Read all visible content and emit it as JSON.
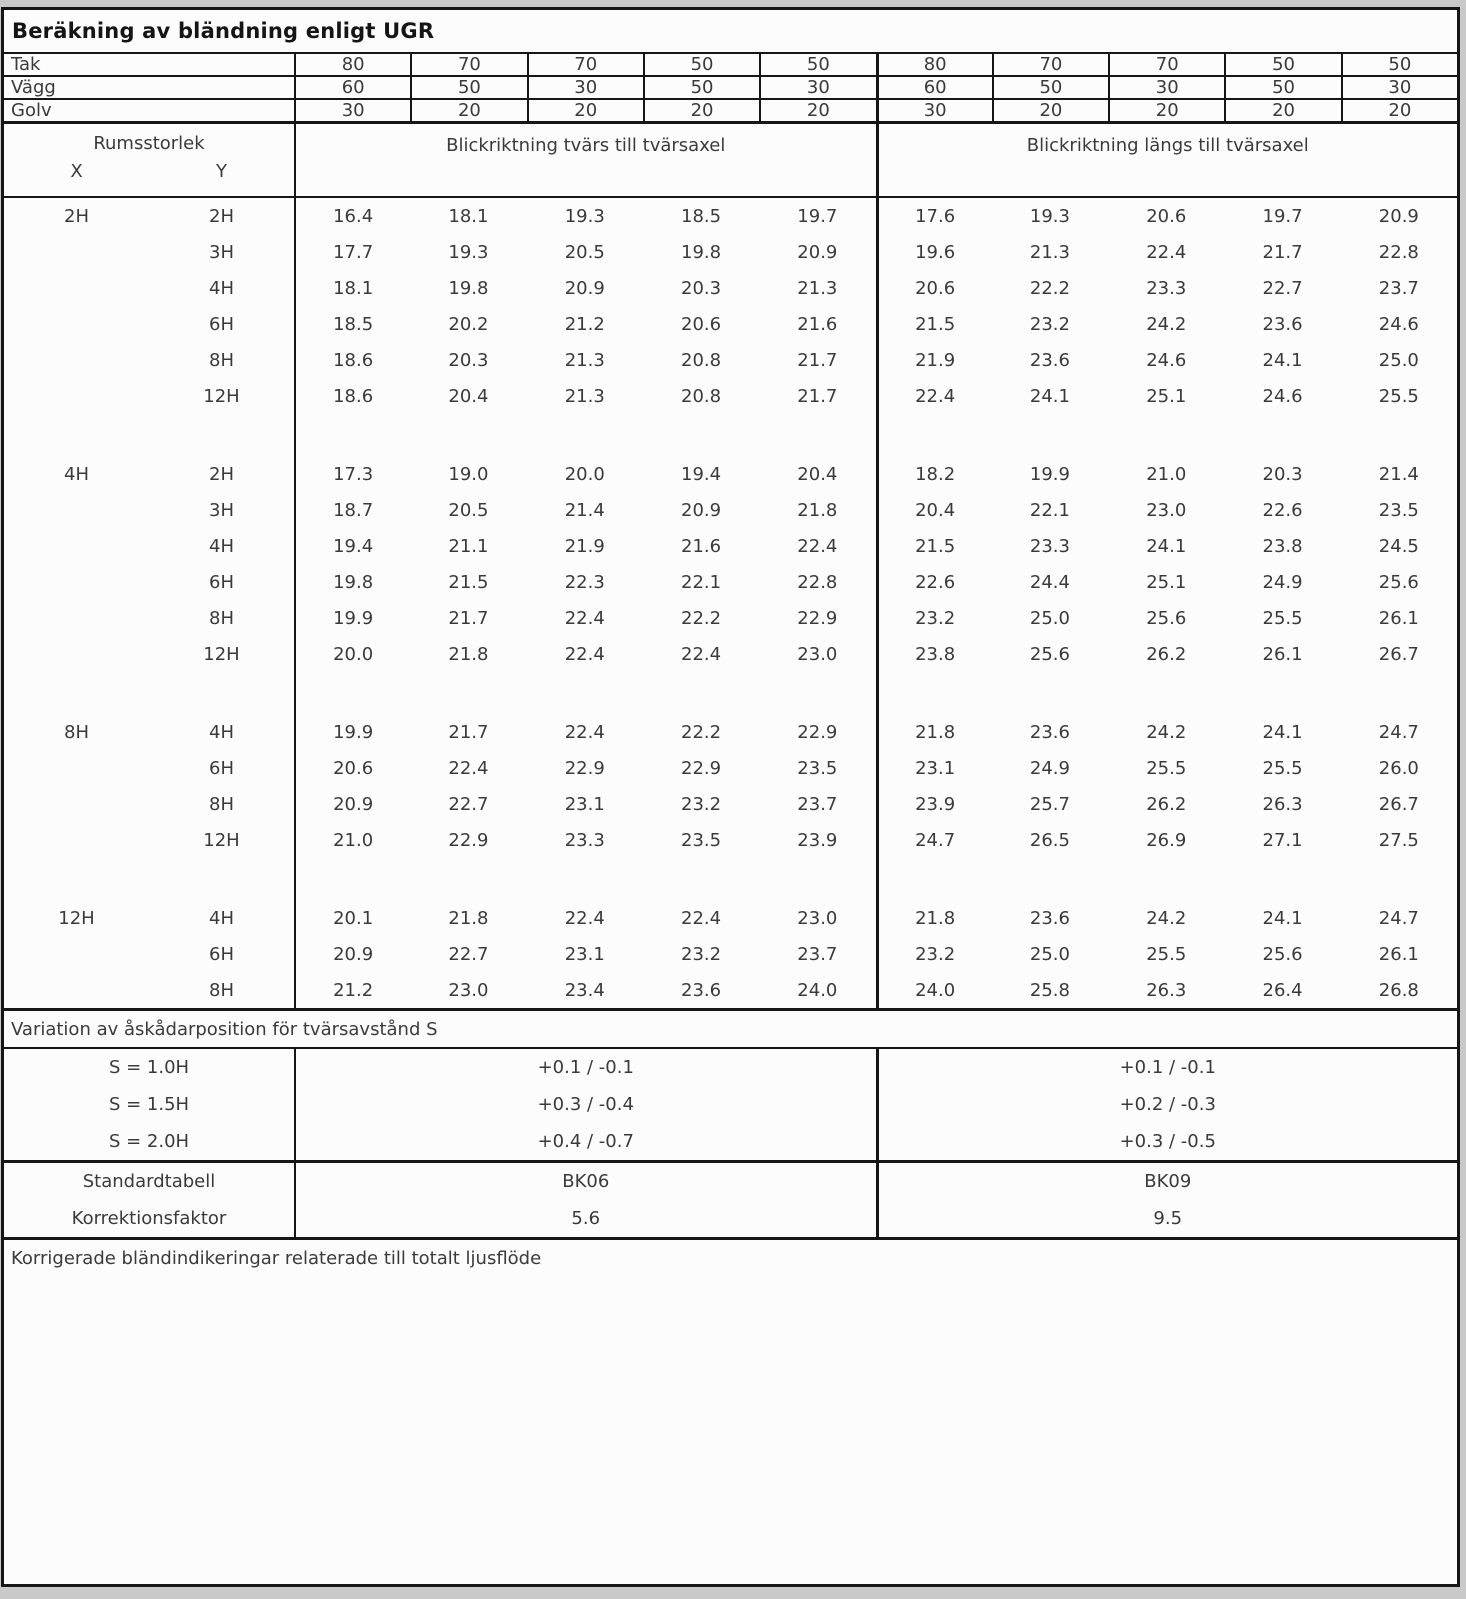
{
  "title": "Beräkning av bländning enligt UGR",
  "reflectance": {
    "rows": [
      {
        "label": "Tak",
        "values": [
          "80",
          "70",
          "70",
          "50",
          "50",
          "80",
          "70",
          "70",
          "50",
          "50"
        ]
      },
      {
        "label": "Vägg",
        "values": [
          "60",
          "50",
          "30",
          "50",
          "30",
          "60",
          "50",
          "30",
          "50",
          "30"
        ]
      },
      {
        "label": "Golv",
        "values": [
          "30",
          "20",
          "20",
          "20",
          "20",
          "30",
          "20",
          "20",
          "20",
          "20"
        ]
      }
    ]
  },
  "header": {
    "room_size_label": "Rumsstorlek",
    "x_label": "X",
    "y_label": "Y",
    "left_heading": "Blickriktning tvärs till tvärsaxel",
    "right_heading": "Blickriktning längs till tvärsaxel"
  },
  "ugr_table": {
    "blocks": [
      {
        "x": "2H",
        "rows": [
          {
            "y": "2H",
            "tvars": [
              "16.4",
              "18.1",
              "19.3",
              "18.5",
              "19.7"
            ],
            "langs": [
              "17.6",
              "19.3",
              "20.6",
              "19.7",
              "20.9"
            ]
          },
          {
            "y": "3H",
            "tvars": [
              "17.7",
              "19.3",
              "20.5",
              "19.8",
              "20.9"
            ],
            "langs": [
              "19.6",
              "21.3",
              "22.4",
              "21.7",
              "22.8"
            ]
          },
          {
            "y": "4H",
            "tvars": [
              "18.1",
              "19.8",
              "20.9",
              "20.3",
              "21.3"
            ],
            "langs": [
              "20.6",
              "22.2",
              "23.3",
              "22.7",
              "23.7"
            ]
          },
          {
            "y": "6H",
            "tvars": [
              "18.5",
              "20.2",
              "21.2",
              "20.6",
              "21.6"
            ],
            "langs": [
              "21.5",
              "23.2",
              "24.2",
              "23.6",
              "24.6"
            ]
          },
          {
            "y": "8H",
            "tvars": [
              "18.6",
              "20.3",
              "21.3",
              "20.8",
              "21.7"
            ],
            "langs": [
              "21.9",
              "23.6",
              "24.6",
              "24.1",
              "25.0"
            ]
          },
          {
            "y": "12H",
            "tvars": [
              "18.6",
              "20.4",
              "21.3",
              "20.8",
              "21.7"
            ],
            "langs": [
              "22.4",
              "24.1",
              "25.1",
              "24.6",
              "25.5"
            ]
          }
        ]
      },
      {
        "x": "4H",
        "rows": [
          {
            "y": "2H",
            "tvars": [
              "17.3",
              "19.0",
              "20.0",
              "19.4",
              "20.4"
            ],
            "langs": [
              "18.2",
              "19.9",
              "21.0",
              "20.3",
              "21.4"
            ]
          },
          {
            "y": "3H",
            "tvars": [
              "18.7",
              "20.5",
              "21.4",
              "20.9",
              "21.8"
            ],
            "langs": [
              "20.4",
              "22.1",
              "23.0",
              "22.6",
              "23.5"
            ]
          },
          {
            "y": "4H",
            "tvars": [
              "19.4",
              "21.1",
              "21.9",
              "21.6",
              "22.4"
            ],
            "langs": [
              "21.5",
              "23.3",
              "24.1",
              "23.8",
              "24.5"
            ]
          },
          {
            "y": "6H",
            "tvars": [
              "19.8",
              "21.5",
              "22.3",
              "22.1",
              "22.8"
            ],
            "langs": [
              "22.6",
              "24.4",
              "25.1",
              "24.9",
              "25.6"
            ]
          },
          {
            "y": "8H",
            "tvars": [
              "19.9",
              "21.7",
              "22.4",
              "22.2",
              "22.9"
            ],
            "langs": [
              "23.2",
              "25.0",
              "25.6",
              "25.5",
              "26.1"
            ]
          },
          {
            "y": "12H",
            "tvars": [
              "20.0",
              "21.8",
              "22.4",
              "22.4",
              "23.0"
            ],
            "langs": [
              "23.8",
              "25.6",
              "26.2",
              "26.1",
              "26.7"
            ]
          }
        ]
      },
      {
        "x": "8H",
        "rows": [
          {
            "y": "4H",
            "tvars": [
              "19.9",
              "21.7",
              "22.4",
              "22.2",
              "22.9"
            ],
            "langs": [
              "21.8",
              "23.6",
              "24.2",
              "24.1",
              "24.7"
            ]
          },
          {
            "y": "6H",
            "tvars": [
              "20.6",
              "22.4",
              "22.9",
              "22.9",
              "23.5"
            ],
            "langs": [
              "23.1",
              "24.9",
              "25.5",
              "25.5",
              "26.0"
            ]
          },
          {
            "y": "8H",
            "tvars": [
              "20.9",
              "22.7",
              "23.1",
              "23.2",
              "23.7"
            ],
            "langs": [
              "23.9",
              "25.7",
              "26.2",
              "26.3",
              "26.7"
            ]
          },
          {
            "y": "12H",
            "tvars": [
              "21.0",
              "22.9",
              "23.3",
              "23.5",
              "23.9"
            ],
            "langs": [
              "24.7",
              "26.5",
              "26.9",
              "27.1",
              "27.5"
            ]
          }
        ]
      },
      {
        "x": "12H",
        "rows": [
          {
            "y": "4H",
            "tvars": [
              "20.1",
              "21.8",
              "22.4",
              "22.4",
              "23.0"
            ],
            "langs": [
              "21.8",
              "23.6",
              "24.2",
              "24.1",
              "24.7"
            ]
          },
          {
            "y": "6H",
            "tvars": [
              "20.9",
              "22.7",
              "23.1",
              "23.2",
              "23.7"
            ],
            "langs": [
              "23.2",
              "25.0",
              "25.5",
              "25.6",
              "26.1"
            ]
          },
          {
            "y": "8H",
            "tvars": [
              "21.2",
              "23.0",
              "23.4",
              "23.6",
              "24.0"
            ],
            "langs": [
              "24.0",
              "25.8",
              "26.3",
              "26.4",
              "26.8"
            ]
          }
        ]
      }
    ]
  },
  "variation": {
    "heading": "Variation av åskådarposition för tvärsavstånd S",
    "rows": [
      {
        "label": "S = 1.0H",
        "left": "+0.1 / -0.1",
        "right": "+0.1 / -0.1"
      },
      {
        "label": "S = 1.5H",
        "left": "+0.3 / -0.4",
        "right": "+0.2 / -0.3"
      },
      {
        "label": "S = 2.0H",
        "left": "+0.4 / -0.7",
        "right": "+0.3 / -0.5"
      }
    ]
  },
  "standard": {
    "rows": [
      {
        "label": "Standardtabell",
        "left": "BK06",
        "right": "BK09"
      },
      {
        "label": "Korrektionsfaktor",
        "left": "5.6",
        "right": "9.5"
      }
    ]
  },
  "footer": {
    "heading": "Korrigerade bländindikeringar relaterade till totalt ljusflöde"
  },
  "colors": {
    "border": "#161616",
    "text": "#3a3a3a",
    "background": "#fcfcfc"
  }
}
